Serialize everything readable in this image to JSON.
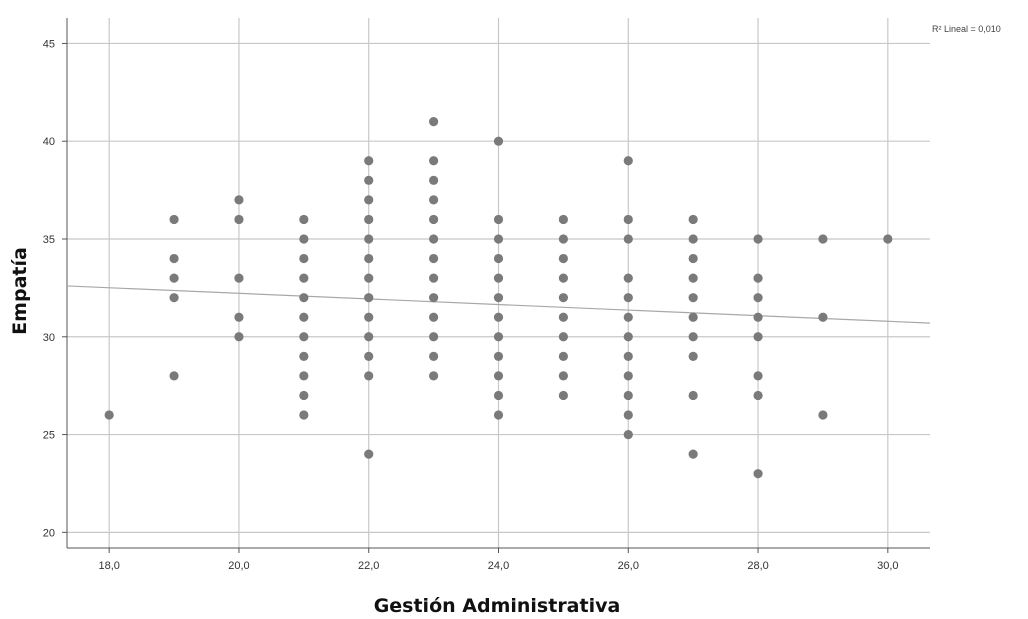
{
  "chart_data": {
    "type": "scatter",
    "xlabel": "Gestión Administrativa",
    "ylabel": "Empatía",
    "xlim": [
      17.35,
      30.65
    ],
    "ylim": [
      19.2,
      46.3
    ],
    "x_ticks": [
      18,
      20,
      22,
      24,
      26,
      28,
      30
    ],
    "x_tick_labels": [
      "18,0",
      "20,0",
      "22,0",
      "24,0",
      "26,0",
      "28,0",
      "30,0"
    ],
    "y_ticks": [
      20,
      25,
      30,
      35,
      40,
      45
    ],
    "y_tick_labels": [
      "20",
      "25",
      "30",
      "35",
      "40",
      "45"
    ],
    "grid": true,
    "annotation": "R² Lineal = 0,010",
    "colors": {
      "points": "#7a7a7a",
      "fit_line": "#a8a8a8",
      "grid": "#c8c8c8",
      "axis": "#555555"
    },
    "fit_line": {
      "x": [
        17.35,
        30.65
      ],
      "y": [
        32.6,
        30.7
      ]
    },
    "points": [
      {
        "x": 18,
        "y": 26
      },
      {
        "x": 19,
        "y": 28
      },
      {
        "x": 19,
        "y": 32
      },
      {
        "x": 19,
        "y": 33
      },
      {
        "x": 19,
        "y": 34
      },
      {
        "x": 19,
        "y": 36
      },
      {
        "x": 20,
        "y": 30
      },
      {
        "x": 20,
        "y": 31
      },
      {
        "x": 20,
        "y": 33
      },
      {
        "x": 20,
        "y": 36
      },
      {
        "x": 20,
        "y": 37
      },
      {
        "x": 21,
        "y": 26
      },
      {
        "x": 21,
        "y": 27
      },
      {
        "x": 21,
        "y": 28
      },
      {
        "x": 21,
        "y": 29
      },
      {
        "x": 21,
        "y": 30
      },
      {
        "x": 21,
        "y": 31
      },
      {
        "x": 21,
        "y": 32
      },
      {
        "x": 21,
        "y": 33
      },
      {
        "x": 21,
        "y": 34
      },
      {
        "x": 21,
        "y": 35
      },
      {
        "x": 21,
        "y": 36
      },
      {
        "x": 22,
        "y": 24
      },
      {
        "x": 22,
        "y": 28
      },
      {
        "x": 22,
        "y": 29
      },
      {
        "x": 22,
        "y": 30
      },
      {
        "x": 22,
        "y": 31
      },
      {
        "x": 22,
        "y": 32
      },
      {
        "x": 22,
        "y": 33
      },
      {
        "x": 22,
        "y": 34
      },
      {
        "x": 22,
        "y": 35
      },
      {
        "x": 22,
        "y": 36
      },
      {
        "x": 22,
        "y": 37
      },
      {
        "x": 22,
        "y": 38
      },
      {
        "x": 22,
        "y": 39
      },
      {
        "x": 23,
        "y": 28
      },
      {
        "x": 23,
        "y": 29
      },
      {
        "x": 23,
        "y": 30
      },
      {
        "x": 23,
        "y": 31
      },
      {
        "x": 23,
        "y": 32
      },
      {
        "x": 23,
        "y": 33
      },
      {
        "x": 23,
        "y": 34
      },
      {
        "x": 23,
        "y": 35
      },
      {
        "x": 23,
        "y": 36
      },
      {
        "x": 23,
        "y": 37
      },
      {
        "x": 23,
        "y": 38
      },
      {
        "x": 23,
        "y": 39
      },
      {
        "x": 23,
        "y": 41
      },
      {
        "x": 24,
        "y": 26
      },
      {
        "x": 24,
        "y": 27
      },
      {
        "x": 24,
        "y": 28
      },
      {
        "x": 24,
        "y": 29
      },
      {
        "x": 24,
        "y": 30
      },
      {
        "x": 24,
        "y": 31
      },
      {
        "x": 24,
        "y": 32
      },
      {
        "x": 24,
        "y": 33
      },
      {
        "x": 24,
        "y": 34
      },
      {
        "x": 24,
        "y": 35
      },
      {
        "x": 24,
        "y": 36
      },
      {
        "x": 24,
        "y": 40
      },
      {
        "x": 25,
        "y": 27
      },
      {
        "x": 25,
        "y": 28
      },
      {
        "x": 25,
        "y": 29
      },
      {
        "x": 25,
        "y": 30
      },
      {
        "x": 25,
        "y": 31
      },
      {
        "x": 25,
        "y": 32
      },
      {
        "x": 25,
        "y": 33
      },
      {
        "x": 25,
        "y": 34
      },
      {
        "x": 25,
        "y": 35
      },
      {
        "x": 25,
        "y": 36
      },
      {
        "x": 26,
        "y": 25
      },
      {
        "x": 26,
        "y": 26
      },
      {
        "x": 26,
        "y": 27
      },
      {
        "x": 26,
        "y": 28
      },
      {
        "x": 26,
        "y": 29
      },
      {
        "x": 26,
        "y": 30
      },
      {
        "x": 26,
        "y": 31
      },
      {
        "x": 26,
        "y": 32
      },
      {
        "x": 26,
        "y": 33
      },
      {
        "x": 26,
        "y": 35
      },
      {
        "x": 26,
        "y": 36
      },
      {
        "x": 26,
        "y": 39
      },
      {
        "x": 27,
        "y": 24
      },
      {
        "x": 27,
        "y": 27
      },
      {
        "x": 27,
        "y": 29
      },
      {
        "x": 27,
        "y": 30
      },
      {
        "x": 27,
        "y": 31
      },
      {
        "x": 27,
        "y": 32
      },
      {
        "x": 27,
        "y": 33
      },
      {
        "x": 27,
        "y": 34
      },
      {
        "x": 27,
        "y": 35
      },
      {
        "x": 27,
        "y": 36
      },
      {
        "x": 28,
        "y": 23
      },
      {
        "x": 28,
        "y": 27
      },
      {
        "x": 28,
        "y": 28
      },
      {
        "x": 28,
        "y": 30
      },
      {
        "x": 28,
        "y": 31
      },
      {
        "x": 28,
        "y": 32
      },
      {
        "x": 28,
        "y": 33
      },
      {
        "x": 28,
        "y": 35
      },
      {
        "x": 29,
        "y": 26
      },
      {
        "x": 29,
        "y": 31
      },
      {
        "x": 29,
        "y": 35
      },
      {
        "x": 30,
        "y": 35
      }
    ]
  }
}
